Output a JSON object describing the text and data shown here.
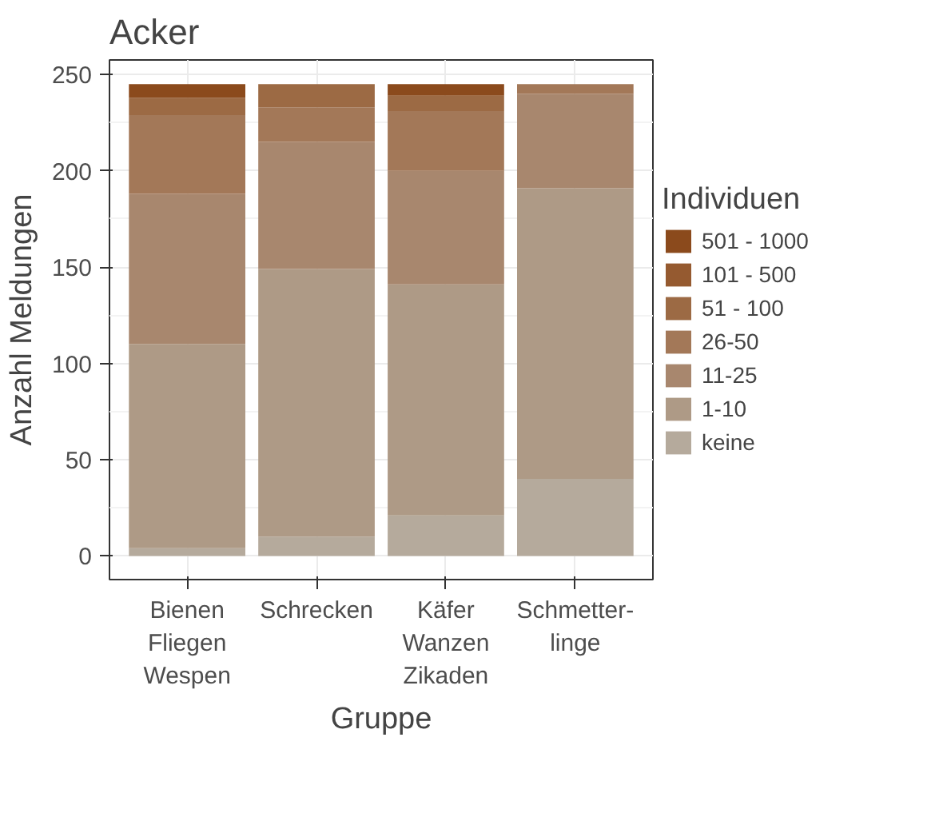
{
  "chart_data": {
    "type": "bar",
    "title": "Acker",
    "xlabel": "Gruppe",
    "ylabel": "Anzahl Meldungen",
    "legend_title": "Individuen",
    "categories": [
      "Bienen\nFliegen\nWespen",
      "Schrecken",
      "Käfer\nWanzen\nZikaden",
      "Schmetter-\nlinge"
    ],
    "stacked": true,
    "series": [
      {
        "name": "keine",
        "color": "#b5aa9c",
        "values": [
          4,
          10,
          21,
          40
        ]
      },
      {
        "name": "1-10",
        "color": "#ae9a86",
        "values": [
          106,
          139,
          120,
          151
        ]
      },
      {
        "name": "11-25",
        "color": "#a8876e",
        "values": [
          78,
          66,
          59,
          49
        ]
      },
      {
        "name": "26-50",
        "color": "#a37858",
        "values": [
          41,
          18,
          31,
          5
        ]
      },
      {
        "name": "51 - 100",
        "color": "#9c6a44",
        "values": [
          9,
          12,
          8,
          0
        ]
      },
      {
        "name": "101 - 500",
        "color": "#955a30",
        "values": [
          0,
          0,
          0,
          0
        ]
      },
      {
        "name": "501 - 1000",
        "color": "#8b4a1c",
        "values": [
          7,
          0,
          6,
          0
        ]
      }
    ],
    "ylim": [
      -12.3,
      257.6
    ],
    "yticks": [
      0,
      50,
      100,
      150,
      200,
      250
    ],
    "grid": true,
    "legend": "right"
  }
}
